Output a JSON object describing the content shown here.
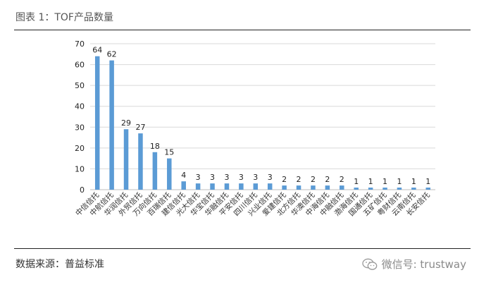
{
  "caption": "图表 1：TOF产品数量",
  "source_text": "数据来源：普益标准",
  "watermark_text": "微信号: trustway",
  "watermark_icon": "wechat-icon",
  "colors": {
    "bar": "#5b9bd5",
    "grid": "#d9d9d9",
    "axis": "#bfbfbf"
  },
  "chart_data": {
    "type": "bar",
    "title": "",
    "xlabel": "",
    "ylabel": "",
    "ylim": [
      0,
      70
    ],
    "yticks": [
      0,
      10,
      20,
      30,
      40,
      50,
      60,
      70
    ],
    "grid": true,
    "categories": [
      "中信信托",
      "中航信托",
      "华润信托",
      "外贸信托",
      "万向信托",
      "百瑞信托",
      "建信信托",
      "光大信托",
      "华宝信托",
      "华融信托",
      "平安信托",
      "四川信托",
      "兴业信托",
      "爱建信托",
      "北方信托",
      "华澳信托",
      "中海信托",
      "中融信托",
      "渤海信托",
      "国通信托",
      "五矿信托",
      "粤财信托",
      "云南信托",
      "长安信托"
    ],
    "values": [
      64,
      62,
      29,
      27,
      18,
      15,
      4,
      3,
      3,
      3,
      3,
      3,
      3,
      2,
      2,
      2,
      2,
      2,
      1,
      1,
      1,
      1,
      1,
      1
    ]
  }
}
